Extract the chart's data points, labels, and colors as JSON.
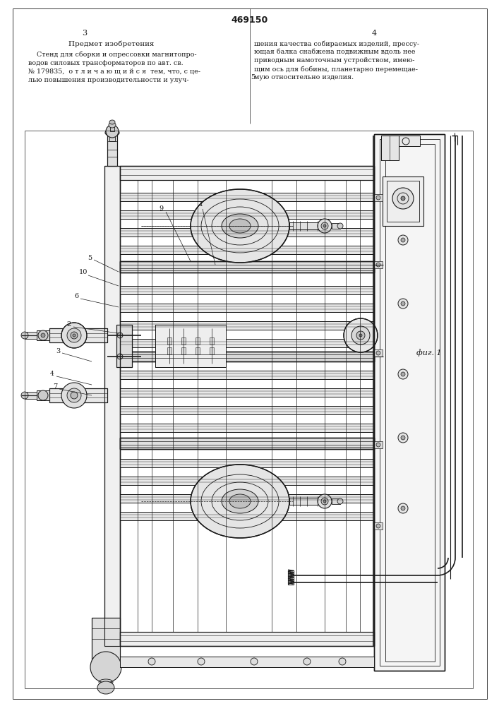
{
  "page_width": 7.07,
  "page_height": 10.0,
  "bg_color": "#ffffff",
  "lc": "#1a1a1a",
  "patent_number": "469150",
  "page_left": "3",
  "page_right": "4",
  "heading": "Предмет изобретения",
  "left_text": [
    "    Стенд для сборки и опрессовки магнитопро-",
    "водов силовых трансформаторов по авт. св.",
    "№ 179835,  о т л и ч а ю щ и й с я  тем, что, с це-",
    "лью повышения производительности и улуч-"
  ],
  "right_text": [
    "шения качества собираемых изделий, прессу-",
    "ющая балка снабжена подвижным вдоль нее",
    "приводным намоточным устройством, имею-",
    "щим ось для бобины, планетарно перемещае-",
    "мую относительно изделия."
  ],
  "num5": "5",
  "fig_label": "фиг. 1"
}
